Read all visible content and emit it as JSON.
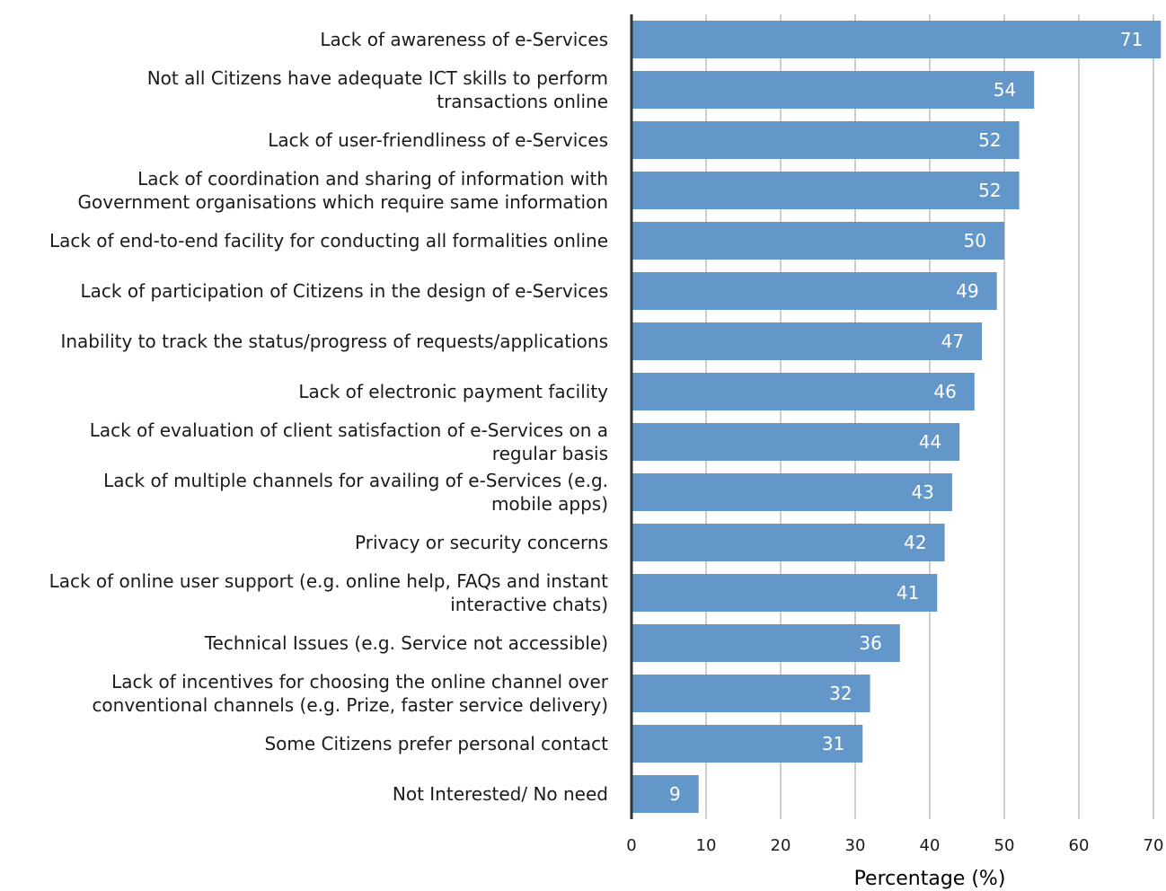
{
  "chart_data": {
    "type": "bar",
    "orientation": "horizontal",
    "categories": [
      [
        "Lack of awareness of e-Services"
      ],
      [
        "Not all Citizens have adequate ICT skills to perform",
        "transactions online"
      ],
      [
        "Lack of user-friendliness of e-Services"
      ],
      [
        "Lack of coordination and sharing of information with",
        "Government organisations which require same information"
      ],
      [
        "Lack of end-to-end facility for conducting all formalities online"
      ],
      [
        "Lack of participation of Citizens in the design of e-Services"
      ],
      [
        "Inability to track the status/progress of requests/applications"
      ],
      [
        "Lack of electronic payment facility"
      ],
      [
        "Lack of evaluation of client satisfaction of e-Services on a",
        "regular basis"
      ],
      [
        "Lack of multiple channels for availing of e-Services (e.g.",
        "mobile apps)"
      ],
      [
        "Privacy or security concerns"
      ],
      [
        "Lack of online user support (e.g. online help, FAQs and instant",
        "interactive chats)"
      ],
      [
        "Technical Issues (e.g. Service not accessible)"
      ],
      [
        "Lack of incentives for choosing the online channel over",
        "conventional channels (e.g. Prize, faster service delivery)"
      ],
      [
        "Some Citizens prefer personal contact"
      ],
      [
        "Not Interested/ No need"
      ]
    ],
    "values": [
      71,
      54,
      52,
      52,
      50,
      49,
      47,
      46,
      44,
      43,
      42,
      41,
      36,
      32,
      31,
      9
    ],
    "value_labels": [
      "71",
      "54",
      "52",
      "52",
      "50",
      "49",
      "47",
      "46",
      "44",
      "43",
      "42",
      "41",
      "36",
      "32",
      "31",
      "9"
    ],
    "xlabel": "Percentage (%)",
    "ylabel": "",
    "title": "",
    "xlim": [
      0,
      71
    ],
    "x_ticks": [
      0,
      10,
      20,
      30,
      40,
      50,
      60,
      70
    ],
    "x_tick_labels": [
      "0",
      "10",
      "20",
      "30",
      "40",
      "50",
      "60",
      "70"
    ],
    "grid": "vertical",
    "bar_color": "#6497c9",
    "legend": "none"
  }
}
